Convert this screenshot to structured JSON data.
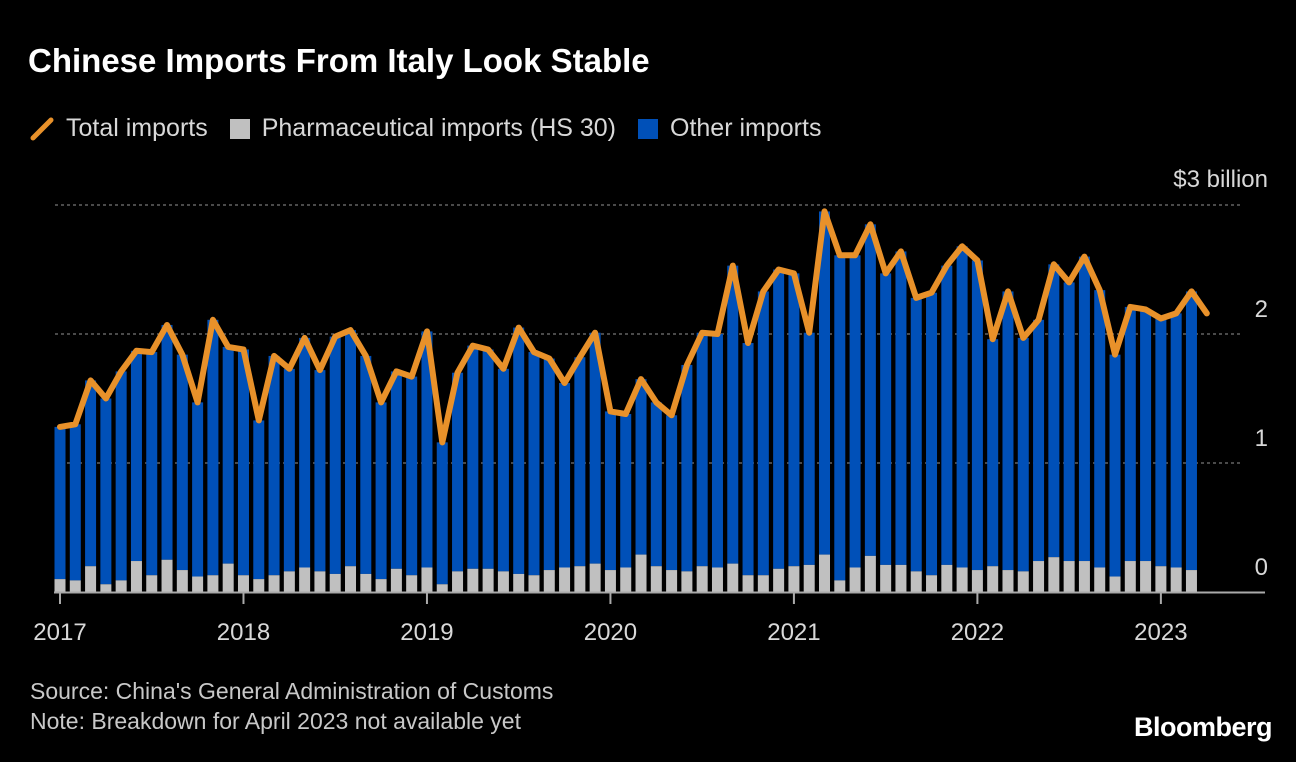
{
  "chart_data": {
    "type": "bar+line",
    "title": "Chinese Imports From Italy Look Stable",
    "y_unit_label": "$3 billion",
    "ylim": [
      0,
      3
    ],
    "yticks": [
      {
        "v": 0,
        "label": "0"
      },
      {
        "v": 1,
        "label": "1"
      },
      {
        "v": 2,
        "label": "2"
      },
      {
        "v": 3,
        "label": "$3 billion"
      }
    ],
    "xticks": [
      "2017",
      "2018",
      "2019",
      "2020",
      "2021",
      "2022",
      "2023"
    ],
    "start": "2017-01",
    "grid": true,
    "legend_placement": "top-left",
    "series": [
      {
        "name": "Total imports",
        "kind": "line",
        "color": "#e8912a",
        "values": [
          1.28,
          1.3,
          1.64,
          1.5,
          1.71,
          1.87,
          1.86,
          2.07,
          1.84,
          1.47,
          2.11,
          1.9,
          1.88,
          1.33,
          1.83,
          1.73,
          1.97,
          1.72,
          1.98,
          2.03,
          1.83,
          1.47,
          1.71,
          1.67,
          2.02,
          1.16,
          1.7,
          1.91,
          1.88,
          1.73,
          2.05,
          1.86,
          1.81,
          1.62,
          1.82,
          2.01,
          1.4,
          1.38,
          1.65,
          1.47,
          1.37,
          1.76,
          2.01,
          2.0,
          2.53,
          1.93,
          2.33,
          2.5,
          2.47,
          2.01,
          2.95,
          2.61,
          2.61,
          2.85,
          2.47,
          2.64,
          2.28,
          2.32,
          2.53,
          2.68,
          2.57,
          1.96,
          2.33,
          1.97,
          2.11,
          2.54,
          2.4,
          2.6,
          2.34,
          1.84,
          2.21,
          2.19,
          2.12,
          2.16,
          2.33,
          2.16
        ]
      },
      {
        "name": "Pharmaceutical imports (HS 30)",
        "kind": "bar",
        "color": "#c0c0c0",
        "values": [
          0.1,
          0.09,
          0.2,
          0.06,
          0.09,
          0.24,
          0.13,
          0.25,
          0.17,
          0.12,
          0.13,
          0.22,
          0.13,
          0.1,
          0.13,
          0.16,
          0.19,
          0.16,
          0.14,
          0.2,
          0.14,
          0.1,
          0.18,
          0.13,
          0.19,
          0.06,
          0.16,
          0.18,
          0.18,
          0.16,
          0.14,
          0.13,
          0.17,
          0.19,
          0.2,
          0.22,
          0.17,
          0.19,
          0.29,
          0.2,
          0.17,
          0.16,
          0.2,
          0.19,
          0.22,
          0.13,
          0.13,
          0.18,
          0.2,
          0.21,
          0.29,
          0.09,
          0.19,
          0.28,
          0.21,
          0.21,
          0.16,
          0.13,
          0.21,
          0.19,
          0.17,
          0.2,
          0.17,
          0.16,
          0.24,
          0.27,
          0.24,
          0.24,
          0.19,
          0.12,
          0.24,
          0.24,
          0.2,
          0.19,
          0.17
        ]
      },
      {
        "name": "Other imports",
        "kind": "bar-stacked-remainder",
        "color": "#0050b8"
      }
    ]
  },
  "source": "Source: China's General Administration of Customs",
  "note": "Note: Breakdown for April 2023 not available yet",
  "logo": "Bloomberg"
}
